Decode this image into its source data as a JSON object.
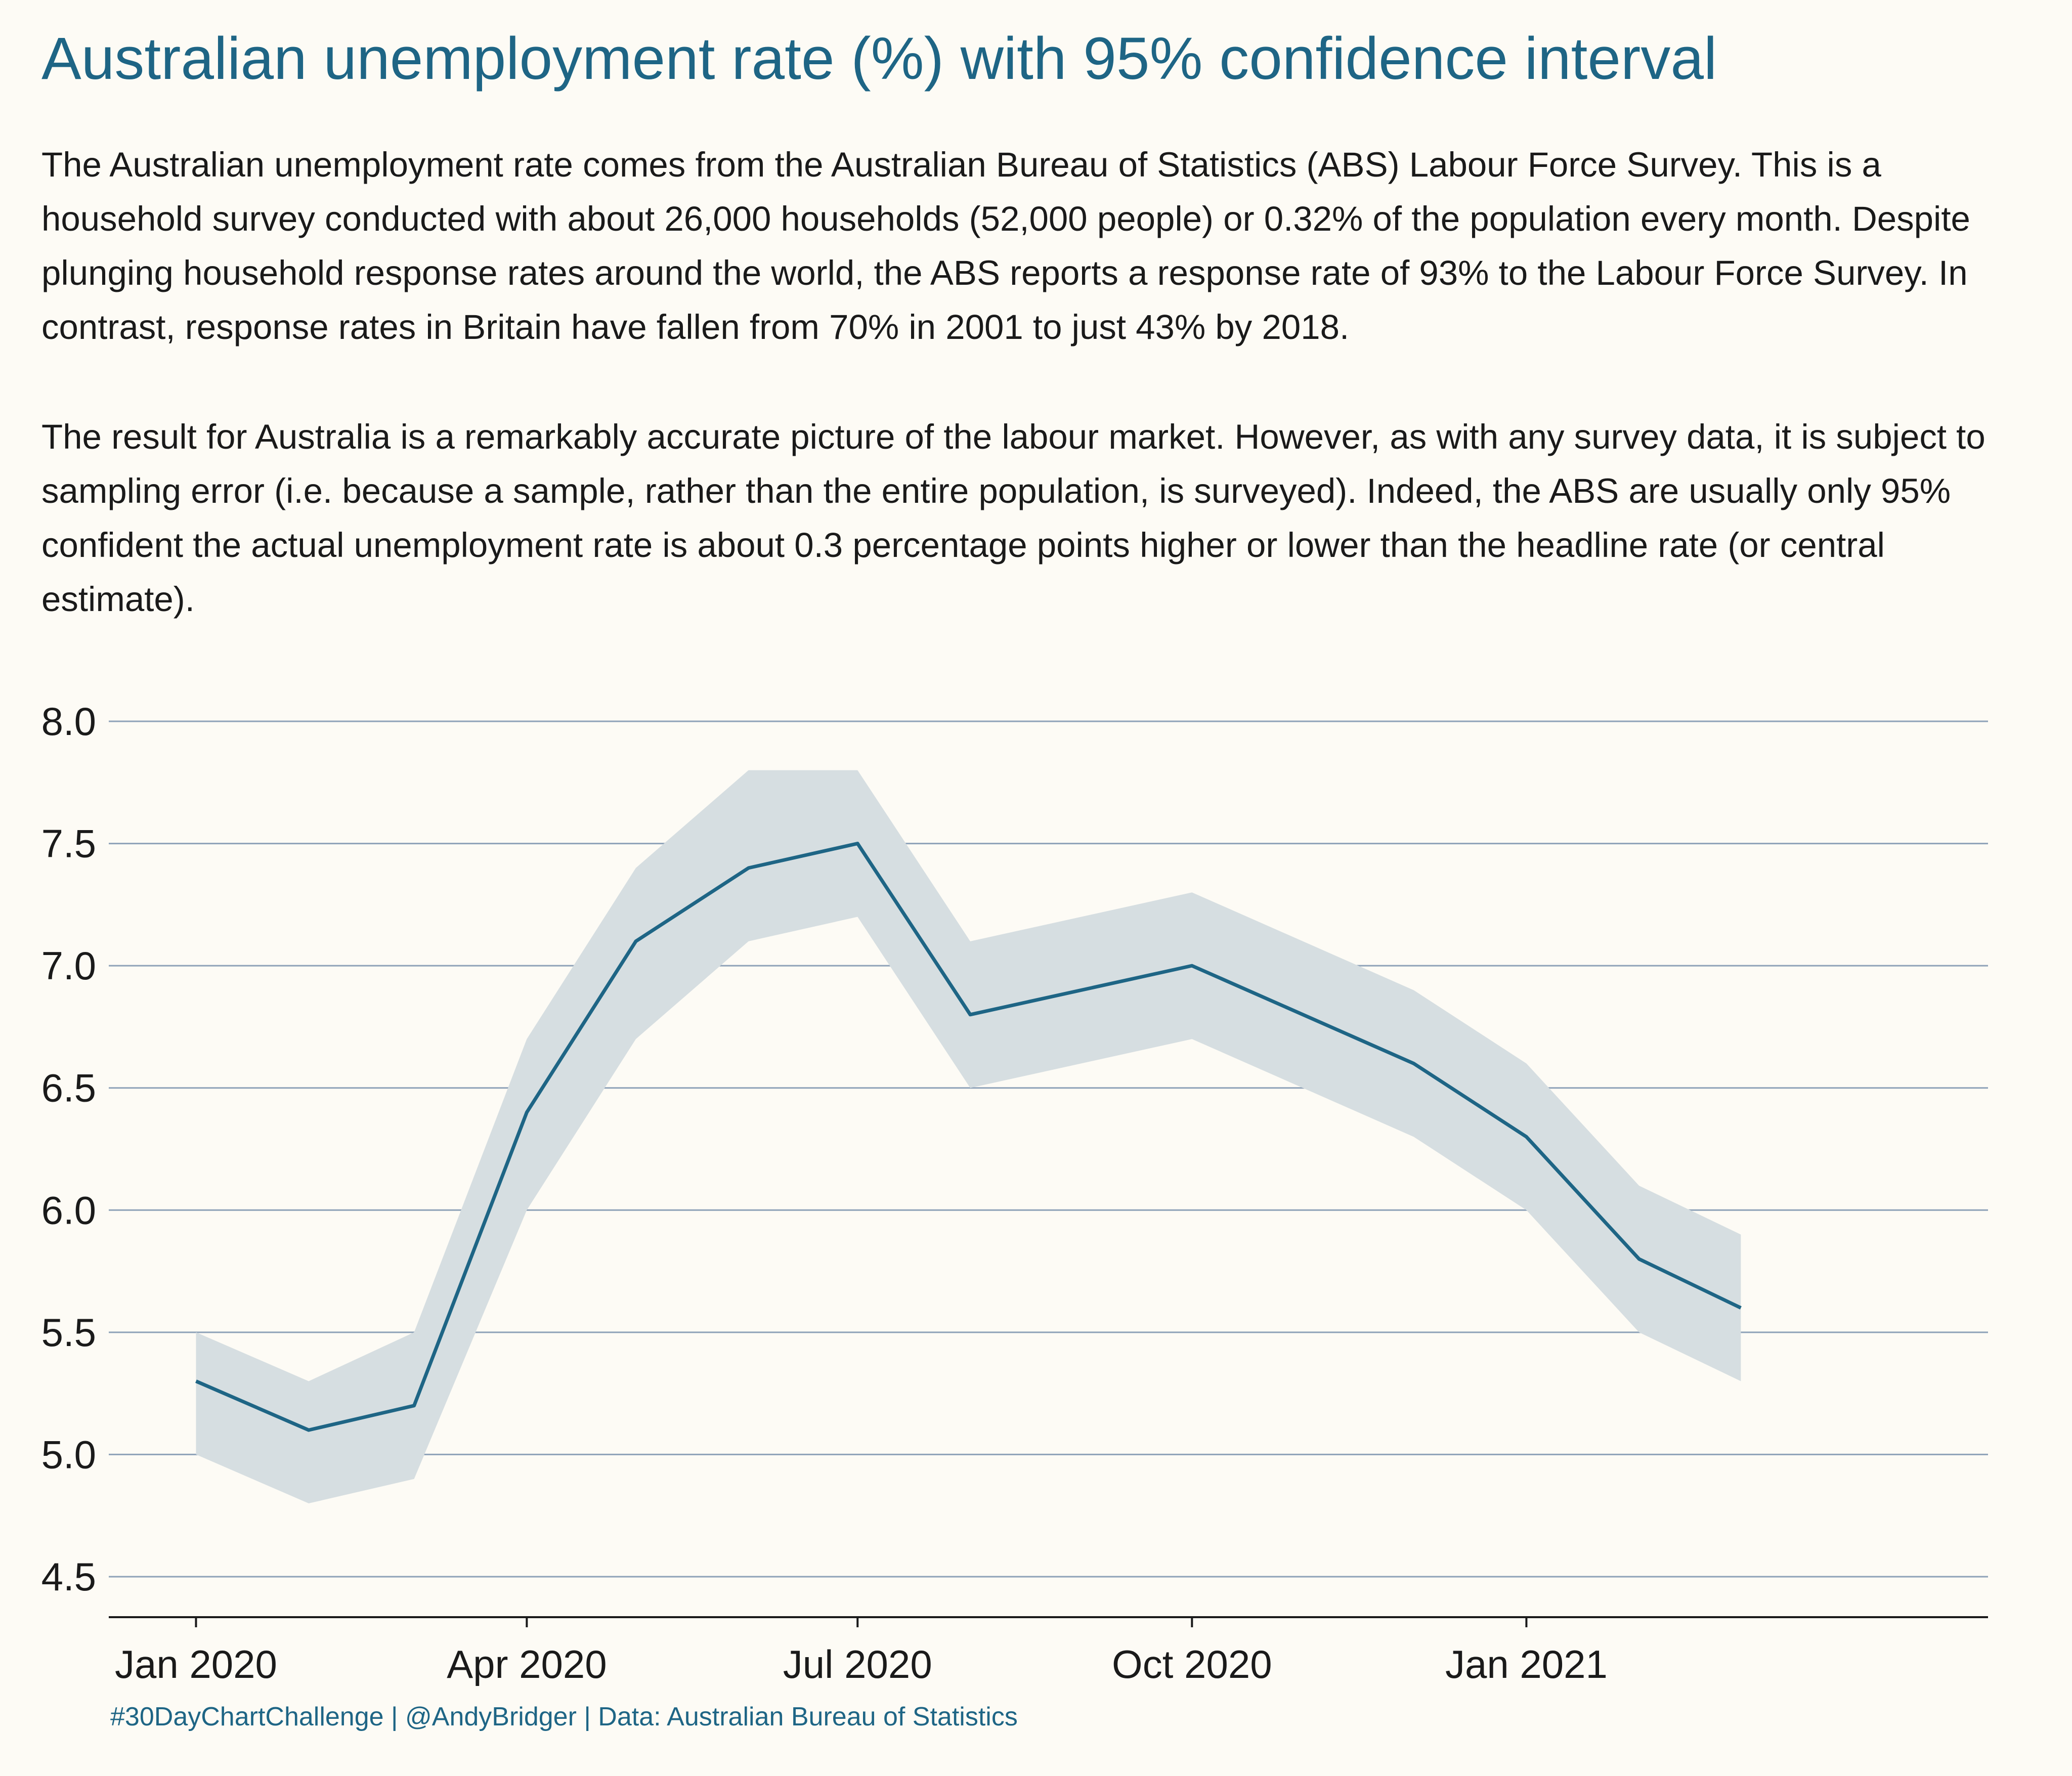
{
  "title": "Australian unemployment rate (%) with 95% confidence interval",
  "paragraphs": [
    "The Australian unemployment rate comes from the Australian Bureau of Statistics (ABS) Labour Force Survey. This is a household survey conducted with about 26,000 households (52,000 people) or 0.32% of the population every month. Despite plunging household response rates around the world, the ABS reports a response rate of 93% to the Labour Force Survey. In contrast, response rates in Britain have fallen from 70% in 2001 to just 43% by 2018.",
    "The result for Australia is a remarkably accurate picture of the labour market. However, as with any survey data, it is subject to sampling error (i.e. because a sample, rather than the entire population, is surveyed). Indeed, the ABS are usually only 95% confident the actual unemployment rate is about 0.3 percentage points higher or lower than the headline rate (or central estimate)."
  ],
  "caption": "#30DayChartChallenge | @AndyBridger | Data: Australian Bureau of Statistics",
  "colors": {
    "line": "#1e6585",
    "band": "#d6dee1",
    "grid": "#8ea2b8",
    "axis": "#1a1a1a",
    "background": "#fdfbf5"
  },
  "chart_data": {
    "type": "line",
    "title": "Australian unemployment rate (%) with 95% confidence interval",
    "xlabel": "",
    "ylabel": "",
    "ylim": [
      4.5,
      8.0
    ],
    "xlim": [
      "2019-12-08",
      "2021-05-08"
    ],
    "y_ticks": [
      4.5,
      5.0,
      5.5,
      6.0,
      6.5,
      7.0,
      7.5,
      8.0
    ],
    "y_tick_labels": [
      "4.5",
      "5.0",
      "5.5",
      "6.0",
      "6.5",
      "7.0",
      "7.5",
      "8.0"
    ],
    "x_ticks": [
      "2020-01-01",
      "2020-04-01",
      "2020-07-01",
      "2020-10-01",
      "2021-01-01"
    ],
    "x_tick_labels": [
      "Jan 2020",
      "Apr 2020",
      "Jul 2020",
      "Oct 2020",
      "Jan 2021"
    ],
    "grid": true,
    "legend": "none",
    "x": [
      "2020-01-01",
      "2020-02-01",
      "2020-03-01",
      "2020-04-01",
      "2020-05-01",
      "2020-06-01",
      "2020-07-01",
      "2020-08-01",
      "2020-10-01",
      "2020-12-01",
      "2021-01-01",
      "2021-02-01",
      "2021-03-01"
    ],
    "series": [
      {
        "values": [
          5.3,
          5.1,
          5.2,
          6.4,
          7.1,
          7.4,
          7.5,
          6.8,
          7.0,
          6.6,
          6.3,
          5.8,
          5.6
        ],
        "lower": [
          5.0,
          4.8,
          4.9,
          6.0,
          6.7,
          7.1,
          7.2,
          6.5,
          6.7,
          6.3,
          6.0,
          5.5,
          5.3
        ],
        "upper": [
          5.5,
          5.3,
          5.5,
          6.7,
          7.4,
          7.8,
          7.8,
          7.1,
          7.3,
          6.9,
          6.6,
          6.1,
          5.9
        ]
      }
    ]
  }
}
